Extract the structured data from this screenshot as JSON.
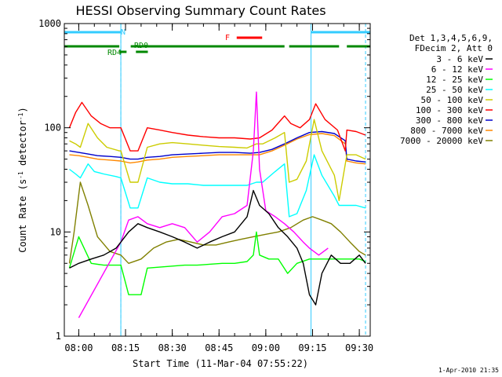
{
  "chart_data": {
    "type": "line",
    "title": "HESSI Observing Summary Count Rates",
    "xlabel": "Start Time (11-Mar-04 07:55:22)",
    "ylabel": "Count Rate (s⁻¹ detector⁻¹)",
    "ylabel_main": "Count Rate (s",
    "ylabel_sup1": "-1",
    "ylabel_mid": " detector",
    "ylabel_sup2": "-1",
    "ylabel_end": ")",
    "y_scale": "log",
    "ylim": [
      1,
      1000
    ],
    "xlim": [
      "07:55:22",
      "09:33:30"
    ],
    "x_ticks": [
      "08:00",
      "08:15",
      "08:30",
      "08:45",
      "09:00",
      "09:15",
      "09:30"
    ],
    "y_ticks": [
      "1",
      "10",
      "100",
      "1000"
    ],
    "legend_position": "right",
    "legend_header": [
      "Det 1,3,4,5,6,9,",
      "FDecim 2, Att 0"
    ],
    "footer_timestamp": "1-Apr-2010 21:35",
    "flag_labels": {
      "saa": "N",
      "flare": "F",
      "rd0": "RD0",
      "rd4": "RD4"
    },
    "flags": {
      "saa_bars": [
        [
          "07:55:22",
          "08:13:30"
        ],
        [
          "09:14:30",
          "09:33:30"
        ]
      ],
      "flare_bar": [
        "08:50:40",
        "08:58:50"
      ],
      "rd_bars": [
        [
          "07:55:22",
          "08:13:00"
        ],
        [
          "08:16:40",
          "09:06:00"
        ],
        [
          "09:07:30",
          "09:23:30"
        ],
        [
          "09:26:00",
          "09:33:30"
        ]
      ],
      "rd_second_bars": [
        [
          "08:13:00",
          "08:15:20"
        ],
        [
          "08:18:20",
          "08:22:10"
        ]
      ],
      "saa_lines": [
        "08:13:30",
        "09:14:30"
      ],
      "data_gap_dashed": [
        "08:13:30",
        "09:32:00"
      ]
    },
    "series": [
      {
        "name": "3 - 6 keV",
        "color": "#000000",
        "x": [
          "07:57:00",
          "08:00:00",
          "08:04:00",
          "08:08:00",
          "08:12:00",
          "08:13:30",
          "08:16:00",
          "08:19:00",
          "08:22:00",
          "08:26:00",
          "08:30:00",
          "08:34:00",
          "08:38:00",
          "08:42:00",
          "08:46:00",
          "08:50:00",
          "08:54:00",
          "08:56:00",
          "08:58:00",
          "09:01:00",
          "09:04:00",
          "09:07:00",
          "09:10:00",
          "09:12:00",
          "09:14:00",
          "09:16:00",
          "09:18:00",
          "09:21:00",
          "09:24:00",
          "09:27:00",
          "09:30:00",
          "09:32:00"
        ],
        "y": [
          4.5,
          5,
          5.5,
          6,
          7,
          8,
          10,
          12,
          11,
          10,
          9,
          8,
          7,
          8,
          9,
          10,
          14,
          25,
          18,
          15,
          11,
          9,
          7,
          5,
          2.5,
          2,
          4,
          6,
          5,
          5,
          6,
          5
        ]
      },
      {
        "name": "6 - 12 keV",
        "color": "#ff00ff",
        "x": [
          "08:00:00",
          "08:13:30",
          "08:16:00",
          "08:19:00",
          "08:22:00",
          "08:26:00",
          "08:30:00",
          "08:34:00",
          "08:38:00",
          "08:42:00",
          "08:46:00",
          "08:50:00",
          "08:54:00",
          "08:56:00",
          "08:57:00",
          "08:58:00",
          "09:00:00",
          "09:03:00",
          "09:06:00",
          "09:09:00",
          "09:12:00",
          "09:14:00",
          "09:17:00",
          "09:20:00"
        ],
        "y": [
          1.5,
          8,
          13,
          14,
          12,
          11,
          12,
          11,
          8,
          10,
          14,
          15,
          18,
          60,
          220,
          40,
          16,
          14,
          12,
          10,
          8,
          7,
          6,
          7
        ]
      },
      {
        "name": "12 - 25 keV",
        "color": "#00ff00",
        "x": [
          "07:57:00",
          "08:00:00",
          "08:04:00",
          "08:08:00",
          "08:12:00",
          "08:13:30",
          "08:16:00",
          "08:20:00",
          "08:22:00",
          "08:26:00",
          "08:30:00",
          "08:34:00",
          "08:38:00",
          "08:42:00",
          "08:46:00",
          "08:50:00",
          "08:54:00",
          "08:56:00",
          "08:57:00",
          "08:58:00",
          "09:01:00",
          "09:04:00",
          "09:07:00",
          "09:10:00",
          "09:14:00",
          "09:18:00",
          "09:22:00",
          "09:26:00",
          "09:30:00",
          "09:32:00"
        ],
        "y": [
          4.5,
          9,
          5,
          4.8,
          4.8,
          4.8,
          2.5,
          2.5,
          4.5,
          4.6,
          4.7,
          4.8,
          4.8,
          4.9,
          5,
          5,
          5.2,
          6,
          10,
          6,
          5.5,
          5.5,
          4,
          5,
          5.5,
          5.5,
          5.5,
          5.5,
          5.5,
          5.2
        ]
      },
      {
        "name": "25 - 50 keV",
        "color": "#00ffff",
        "x": [
          "07:57:00",
          "07:59:00",
          "08:00:30",
          "08:03:00",
          "08:05:00",
          "08:08:00",
          "08:12:00",
          "08:13:30",
          "08:16:30",
          "08:19:00",
          "08:22:00",
          "08:26:00",
          "08:30:00",
          "08:35:00",
          "08:40:00",
          "08:45:00",
          "08:50:00",
          "08:54:00",
          "08:57:00",
          "08:59:00",
          "09:03:00",
          "09:06:00",
          "09:07:30",
          "09:10:00",
          "09:13:00",
          "09:15:30",
          "09:18:00",
          "09:22:00",
          "09:23:30",
          "09:26:00",
          "09:29:00",
          "09:32:00"
        ],
        "y": [
          40,
          36,
          33,
          45,
          38,
          36,
          34,
          33,
          17,
          17,
          33,
          30,
          29,
          29,
          28,
          28,
          28,
          28,
          30,
          30,
          38,
          45,
          14,
          15,
          25,
          55,
          35,
          22,
          18,
          18,
          18,
          17
        ]
      },
      {
        "name": "50 - 100 keV",
        "color": "#cccc00",
        "x": [
          "07:57:00",
          "07:59:00",
          "08:00:30",
          "08:03:00",
          "08:06:00",
          "08:09:00",
          "08:13:00",
          "08:13:30",
          "08:16:30",
          "08:19:00",
          "08:22:00",
          "08:26:00",
          "08:30:00",
          "08:35:00",
          "08:40:00",
          "08:45:00",
          "08:50:00",
          "08:54:00",
          "08:57:00",
          "08:59:00",
          "09:03:00",
          "09:06:00",
          "09:07:30",
          "09:10:00",
          "09:13:00",
          "09:15:30",
          "09:18:00",
          "09:22:00",
          "09:23:30",
          "09:26:00",
          "09:29:00",
          "09:32:00"
        ],
        "y": [
          75,
          70,
          65,
          110,
          80,
          65,
          60,
          60,
          30,
          30,
          65,
          70,
          72,
          70,
          68,
          66,
          65,
          64,
          70,
          70,
          80,
          90,
          30,
          32,
          48,
          120,
          60,
          35,
          20,
          55,
          55,
          50
        ]
      },
      {
        "name": "100 - 300 keV",
        "color": "#ff0000",
        "x": [
          "07:57:00",
          "07:59:00",
          "08:01:00",
          "08:04:00",
          "08:07:00",
          "08:10:00",
          "08:13:30",
          "08:16:30",
          "08:19:00",
          "08:22:00",
          "08:26:00",
          "08:30:00",
          "08:35:00",
          "08:40:00",
          "08:45:00",
          "08:50:00",
          "08:55:00",
          "08:58:00",
          "09:02:00",
          "09:06:00",
          "09:08:00",
          "09:11:00",
          "09:14:00",
          "09:16:00",
          "09:19:00",
          "09:23:00",
          "09:25:30",
          "09:26:00",
          "09:29:00",
          "09:32:00"
        ],
        "y": [
          100,
          140,
          175,
          130,
          110,
          100,
          100,
          60,
          60,
          100,
          95,
          90,
          85,
          82,
          80,
          80,
          78,
          80,
          95,
          130,
          110,
          100,
          120,
          170,
          120,
          95,
          60,
          95,
          92,
          85
        ]
      },
      {
        "name": "300 - 800 keV",
        "color": "#0000cc",
        "x": [
          "07:57:00",
          "08:00:00",
          "08:03:00",
          "08:06:00",
          "08:10:00",
          "08:13:30",
          "08:16:30",
          "08:19:00",
          "08:22:00",
          "08:26:00",
          "08:30:00",
          "08:35:00",
          "08:40:00",
          "08:45:00",
          "08:50:00",
          "08:55:00",
          "08:58:00",
          "09:02:00",
          "09:06:00",
          "09:10:00",
          "09:14:00",
          "09:18:00",
          "09:22:00",
          "09:25:30",
          "09:26:00",
          "09:29:00",
          "09:32:00"
        ],
        "y": [
          60,
          58,
          56,
          54,
          53,
          52,
          50,
          50,
          52,
          53,
          55,
          56,
          57,
          58,
          58,
          57,
          58,
          62,
          70,
          80,
          90,
          92,
          88,
          75,
          50,
          48,
          47
        ]
      },
      {
        "name": "800 - 7000 keV",
        "color": "#ff8800",
        "x": [
          "07:57:00",
          "08:00:00",
          "08:03:00",
          "08:06:00",
          "08:10:00",
          "08:13:30",
          "08:16:30",
          "08:19:00",
          "08:22:00",
          "08:26:00",
          "08:30:00",
          "08:35:00",
          "08:40:00",
          "08:45:00",
          "08:50:00",
          "08:55:00",
          "08:58:00",
          "09:02:00",
          "09:06:00",
          "09:10:00",
          "09:14:00",
          "09:18:00",
          "09:22:00",
          "09:25:30",
          "09:26:00",
          "09:29:00",
          "09:32:00"
        ],
        "y": [
          55,
          54,
          52,
          50,
          49,
          48,
          46,
          47,
          49,
          50,
          52,
          53,
          54,
          55,
          55,
          55,
          55,
          60,
          68,
          78,
          86,
          88,
          84,
          70,
          48,
          46,
          45
        ]
      },
      {
        "name": "7000 - 20000 keV",
        "color": "#808000",
        "x": [
          "07:57:00",
          "07:58:30",
          "08:00:30",
          "08:03:00",
          "08:06:00",
          "08:10:00",
          "08:13:30",
          "08:16:00",
          "08:20:00",
          "08:24:00",
          "08:28:00",
          "08:32:00",
          "08:36:00",
          "08:40:00",
          "08:44:00",
          "08:48:00",
          "08:52:00",
          "08:56:00",
          "09:00:00",
          "09:04:00",
          "09:08:00",
          "09:12:00",
          "09:15:00",
          "09:18:00",
          "09:21:00",
          "09:24:00",
          "09:27:00",
          "09:30:00",
          "09:32:00"
        ],
        "y": [
          5,
          10,
          30,
          18,
          9,
          6.5,
          6,
          5,
          5.5,
          7,
          8,
          8.5,
          8,
          7.5,
          7.5,
          8,
          8.5,
          9,
          9.5,
          10,
          11,
          13,
          14,
          13,
          12,
          10,
          8,
          6.5,
          6
        ]
      }
    ]
  }
}
